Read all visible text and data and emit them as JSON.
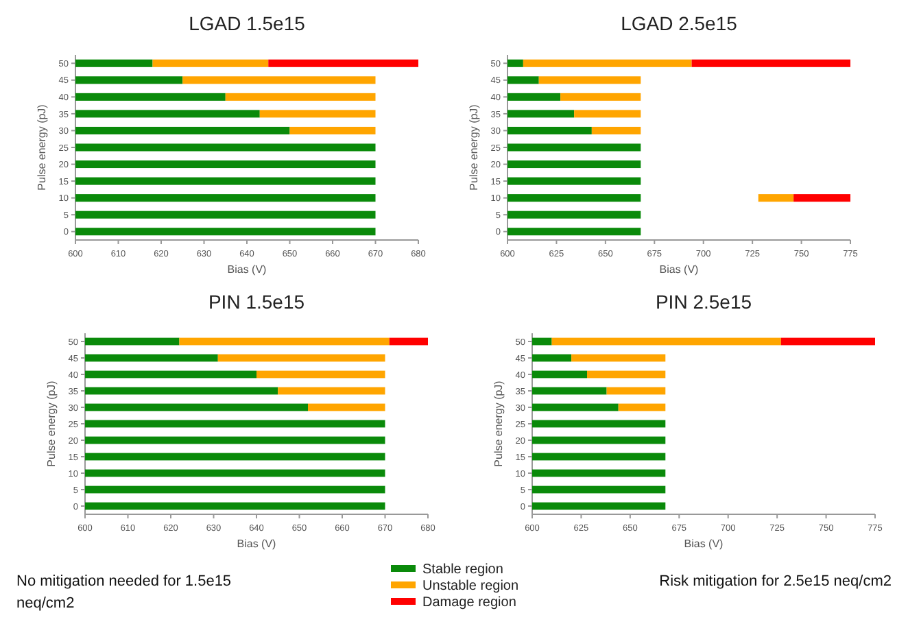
{
  "chart_data": [
    {
      "type": "bar",
      "orientation": "horizontal",
      "title": "LGAD 1.5e15",
      "xlabel": "Bias (V)",
      "ylabel": "Pulse energy (pJ)",
      "categories": [
        "50",
        "45",
        "40",
        "35",
        "30",
        "25",
        "20",
        "15",
        "10",
        "5",
        "0"
      ],
      "xlim": [
        600,
        680
      ],
      "xticks": [
        600,
        610,
        620,
        630,
        640,
        650,
        660,
        670,
        680
      ],
      "legend": "bottom",
      "series": [
        {
          "name": "Stable region",
          "color": "#0a8a0a",
          "base": [
            600,
            600,
            600,
            600,
            600,
            600,
            600,
            600,
            600,
            600,
            600
          ],
          "values": [
            18,
            25,
            35,
            43,
            50,
            70,
            70,
            70,
            70,
            70,
            70
          ]
        },
        {
          "name": "Unstable region",
          "color": "#ffa500",
          "base": [
            618,
            625,
            635,
            643,
            650,
            null,
            null,
            null,
            null,
            null,
            null
          ],
          "values": [
            27,
            45,
            35,
            27,
            20,
            null,
            null,
            null,
            null,
            null,
            null
          ]
        },
        {
          "name": "Damage region",
          "color": "#ff0000",
          "base": [
            645,
            null,
            null,
            null,
            null,
            null,
            null,
            null,
            null,
            null,
            null
          ],
          "values": [
            35,
            null,
            null,
            null,
            null,
            null,
            null,
            null,
            null,
            null,
            null
          ]
        }
      ]
    },
    {
      "type": "bar",
      "orientation": "horizontal",
      "title": "LGAD 2.5e15",
      "xlabel": "Bias (V)",
      "ylabel": "Pulse energy (pJ)",
      "categories": [
        "50",
        "45",
        "40",
        "35",
        "30",
        "25",
        "20",
        "15",
        "10",
        "5",
        "0"
      ],
      "xlim": [
        600,
        775
      ],
      "xticks": [
        600,
        625,
        650,
        675,
        700,
        725,
        750,
        775
      ],
      "series": [
        {
          "color": "#0a8a0a",
          "base": [
            600,
            600,
            600,
            600,
            600,
            600,
            600,
            600,
            600,
            600,
            600
          ],
          "values": [
            8,
            16,
            27,
            34,
            43,
            68,
            68,
            68,
            68,
            68,
            68
          ]
        },
        {
          "color": "#ffa500",
          "base": [
            608,
            616,
            627,
            634,
            643,
            null,
            null,
            null,
            728,
            null,
            null
          ],
          "values": [
            86,
            52,
            41,
            34,
            25,
            null,
            null,
            null,
            18,
            null,
            null
          ]
        },
        {
          "color": "#ff0000",
          "base": [
            694,
            null,
            null,
            null,
            null,
            null,
            null,
            null,
            746,
            null,
            null
          ],
          "values": [
            81,
            null,
            null,
            null,
            null,
            null,
            null,
            null,
            29,
            null,
            null
          ]
        }
      ]
    },
    {
      "type": "bar",
      "orientation": "horizontal",
      "title": "PIN 1.5e15",
      "xlabel": "Bias (V)",
      "ylabel": "Pulse energy (pJ)",
      "categories": [
        "50",
        "45",
        "40",
        "35",
        "30",
        "25",
        "20",
        "15",
        "10",
        "5",
        "0"
      ],
      "xlim": [
        600,
        680
      ],
      "xticks": [
        600,
        610,
        620,
        630,
        640,
        650,
        660,
        670,
        680
      ],
      "annotations": [
        "No mitigation needed for 1.5e15 neq/cm2"
      ],
      "series": [
        {
          "color": "#0a8a0a",
          "base": [
            600,
            600,
            600,
            600,
            600,
            600,
            600,
            600,
            600,
            600,
            600
          ],
          "values": [
            22,
            31,
            40,
            45,
            52,
            70,
            70,
            70,
            70,
            70,
            70
          ]
        },
        {
          "color": "#ffa500",
          "base": [
            622,
            631,
            640,
            645,
            652,
            null,
            null,
            null,
            null,
            null,
            null
          ],
          "values": [
            49,
            39,
            30,
            25,
            18,
            null,
            null,
            null,
            null,
            null,
            null
          ]
        },
        {
          "color": "#ff0000",
          "base": [
            671,
            null,
            null,
            null,
            null,
            null,
            null,
            null,
            null,
            null,
            null
          ],
          "values": [
            9,
            null,
            null,
            null,
            null,
            null,
            null,
            null,
            null,
            null,
            null
          ]
        }
      ]
    },
    {
      "type": "bar",
      "orientation": "horizontal",
      "title": "PIN 2.5e15",
      "xlabel": "Bias (V)",
      "ylabel": "Pulse energy (pJ)",
      "categories": [
        "50",
        "45",
        "40",
        "35",
        "30",
        "25",
        "20",
        "15",
        "10",
        "5",
        "0"
      ],
      "xlim": [
        600,
        775
      ],
      "xticks": [
        600,
        625,
        650,
        675,
        700,
        725,
        750,
        775
      ],
      "annotations": [
        "Risk mitigation for 2.5e15 neq/cm2"
      ],
      "series": [
        {
          "color": "#0a8a0a",
          "base": [
            600,
            600,
            600,
            600,
            600,
            600,
            600,
            600,
            600,
            600,
            600
          ],
          "values": [
            10,
            20,
            28,
            38,
            44,
            68,
            68,
            68,
            68,
            68,
            68
          ]
        },
        {
          "color": "#ffa500",
          "base": [
            610,
            620,
            628,
            638,
            644,
            null,
            null,
            null,
            null,
            null,
            null
          ],
          "values": [
            117,
            48,
            40,
            30,
            24,
            null,
            null,
            null,
            null,
            null,
            null
          ]
        },
        {
          "color": "#ff0000",
          "base": [
            727,
            null,
            null,
            null,
            null,
            null,
            null,
            null,
            null,
            null,
            null
          ],
          "values": [
            48,
            null,
            null,
            null,
            null,
            null,
            null,
            null,
            null,
            null,
            null
          ]
        }
      ]
    }
  ]
}
